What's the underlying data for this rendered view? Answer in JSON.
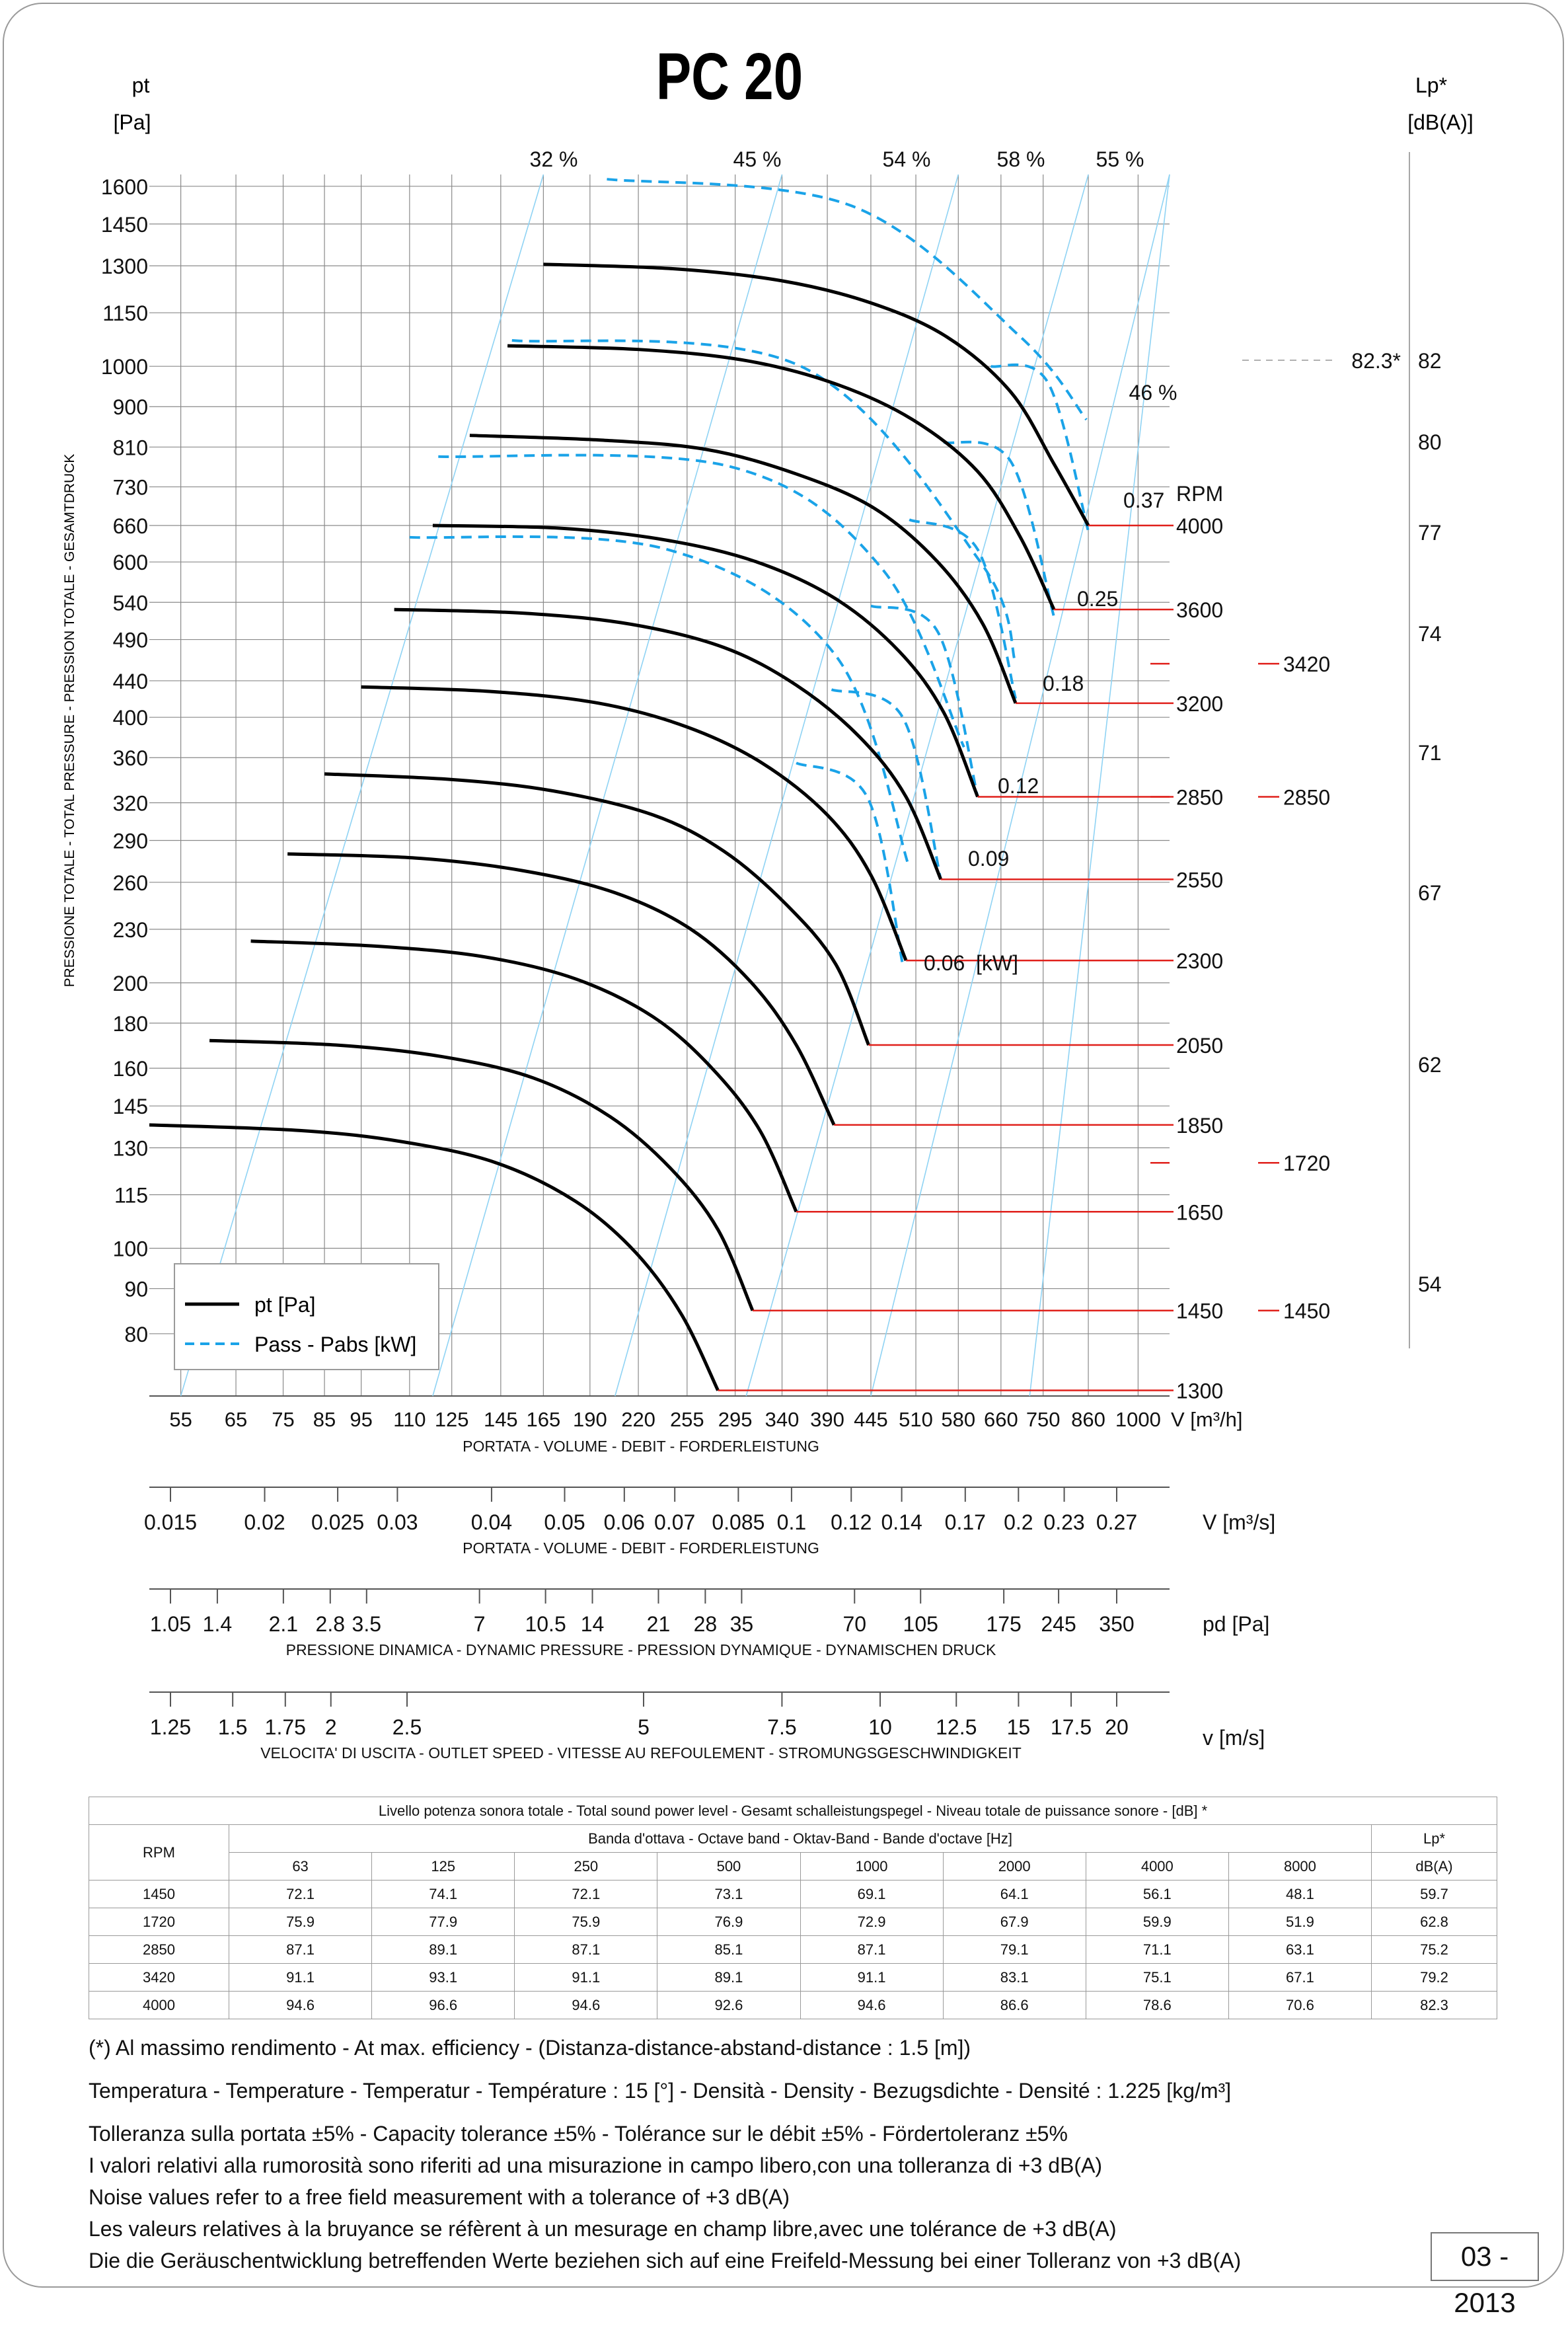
{
  "title": "PC 20",
  "y_axis": {
    "unit_top": "pt",
    "unit_bottom": "[Pa]",
    "label": "PRESSIONE TOTALE - TOTAL PRESSURE - PRESSION TOTALE - GESAMTDRUCK"
  },
  "right_axis": {
    "unit_top": "Lp*",
    "unit_bottom": "[dB(A)]"
  },
  "legend": {
    "pt": "pt [Pa]",
    "pass": "Pass - Pabs [kW]"
  },
  "chart_data": {
    "type": "line",
    "title": "PC 20",
    "x_label": "V [m³/h]",
    "x_scale": "log",
    "xlim": [
      50,
      1100
    ],
    "y_label": "pt [Pa]",
    "y_scale": "log",
    "ylim": [
      68,
      1650
    ],
    "y_ticks": [
      "1600",
      "1450",
      "1300",
      "1150",
      "1000",
      "900",
      "810",
      "730",
      "660",
      "600",
      "540",
      "490",
      "440",
      "400",
      "360",
      "320",
      "290",
      "260",
      "230",
      "200",
      "180",
      "160",
      "145",
      "130",
      "115",
      "100",
      "90",
      "80"
    ],
    "x_ticks": [
      "55",
      "65",
      "75",
      "85",
      "95",
      "110",
      "125",
      "145",
      "165",
      "190",
      "220",
      "255",
      "295",
      "340",
      "390",
      "445",
      "510",
      "580",
      "660",
      "750",
      "860",
      "1000"
    ],
    "x_unit": "V [m³/h]",
    "x_axis_caption": "PORTATA - VOLUME - DEBIT - FORDERLEISTUNG",
    "series": [
      {
        "name": "4000",
        "curve": [
          [
            165,
            1305
          ],
          [
            245,
            1290
          ],
          [
            340,
            1250
          ],
          [
            445,
            1180
          ],
          [
            560,
            1080
          ],
          [
            680,
            935
          ],
          [
            775,
            775
          ],
          [
            860,
            660
          ]
        ]
      },
      {
        "name": "3600",
        "curve": [
          [
            148,
            1055
          ],
          [
            220,
            1045
          ],
          [
            305,
            1015
          ],
          [
            400,
            955
          ],
          [
            505,
            870
          ],
          [
            615,
            760
          ],
          [
            700,
            640
          ],
          [
            775,
            530
          ]
        ]
      },
      {
        "name": "3200",
        "curve": [
          [
            132,
            835
          ],
          [
            195,
            825
          ],
          [
            270,
            805
          ],
          [
            355,
            755
          ],
          [
            450,
            690
          ],
          [
            545,
            600
          ],
          [
            625,
            510
          ],
          [
            690,
            415
          ]
        ]
      },
      {
        "name": "2850",
        "curve": [
          [
            118,
            660
          ],
          [
            175,
            655
          ],
          [
            240,
            635
          ],
          [
            315,
            600
          ],
          [
            400,
            545
          ],
          [
            485,
            475
          ],
          [
            555,
            405
          ],
          [
            615,
            325
          ]
        ]
      },
      {
        "name": "2550",
        "curve": [
          [
            105,
            530
          ],
          [
            155,
            525
          ],
          [
            215,
            510
          ],
          [
            285,
            480
          ],
          [
            355,
            435
          ],
          [
            430,
            380
          ],
          [
            495,
            325
          ],
          [
            550,
            262
          ]
        ]
      },
      {
        "name": "2300",
        "curve": [
          [
            95,
            433
          ],
          [
            140,
            428
          ],
          [
            195,
            415
          ],
          [
            255,
            390
          ],
          [
            320,
            355
          ],
          [
            390,
            310
          ],
          [
            445,
            265
          ],
          [
            495,
            212
          ]
        ]
      },
      {
        "name": "2050",
        "curve": [
          [
            85,
            345
          ],
          [
            125,
            340
          ],
          [
            170,
            330
          ],
          [
            230,
            310
          ],
          [
            285,
            282
          ],
          [
            345,
            245
          ],
          [
            400,
            210
          ],
          [
            442,
            170
          ]
        ]
      },
      {
        "name": "1850",
        "curve": [
          [
            76,
            280
          ],
          [
            112,
            277
          ],
          [
            155,
            268
          ],
          [
            205,
            253
          ],
          [
            258,
            230
          ],
          [
            310,
            200
          ],
          [
            355,
            170
          ],
          [
            398,
            138
          ]
        ]
      },
      {
        "name": "1650",
        "curve": [
          [
            68,
            223
          ],
          [
            100,
            220
          ],
          [
            138,
            214
          ],
          [
            182,
            202
          ],
          [
            230,
            183
          ],
          [
            275,
            160
          ],
          [
            318,
            136
          ],
          [
            355,
            110
          ]
        ]
      },
      {
        "name": "1450",
        "curve": [
          [
            60,
            172
          ],
          [
            88,
            170
          ],
          [
            121,
            165
          ],
          [
            160,
            156
          ],
          [
            202,
            141
          ],
          [
            243,
            123
          ],
          [
            280,
            105
          ],
          [
            311,
            85
          ]
        ]
      },
      {
        "name": "1300",
        "curve": [
          [
            50,
            138
          ],
          [
            79,
            136
          ],
          [
            108,
            132
          ],
          [
            143,
            125
          ],
          [
            182,
            113
          ],
          [
            218,
            99
          ],
          [
            251,
            84
          ],
          [
            280,
            69
          ]
        ]
      }
    ],
    "power": [
      {
        "kw": "0.37",
        "curve": [
          [
            640,
            1000
          ],
          [
            760,
            960
          ],
          [
            860,
            650
          ]
        ]
      },
      {
        "kw": "0.25",
        "curve": [
          [
            555,
            820
          ],
          [
            680,
            780
          ],
          [
            775,
            520
          ]
        ]
      },
      {
        "kw": "0.18",
        "curve": [
          [
            500,
            670
          ],
          [
            615,
            620
          ],
          [
            690,
            420
          ]
        ]
      },
      {
        "kw": "0.12",
        "curve": [
          [
            445,
            535
          ],
          [
            545,
            500
          ],
          [
            615,
            325
          ]
        ]
      },
      {
        "kw": "0.09",
        "curve": [
          [
            395,
            430
          ],
          [
            490,
            400
          ],
          [
            550,
            262
          ]
        ]
      },
      {
        "kw": "0.06",
        "curve": [
          [
            355,
            355
          ],
          [
            440,
            325
          ],
          [
            490,
            210
          ]
        ]
      },
      {
        "kw": "",
        "curve": [
          [
            200,
            1630
          ],
          [
            420,
            1520
          ],
          [
            700,
            1080
          ],
          [
            855,
            870
          ]
        ]
      },
      {
        "kw": "",
        "curve": [
          [
            150,
            1070
          ],
          [
            360,
            1000
          ],
          [
            620,
            600
          ],
          [
            690,
            460
          ]
        ]
      },
      {
        "kw": "",
        "curve": [
          [
            120,
            790
          ],
          [
            290,
            770
          ],
          [
            460,
            590
          ],
          [
            590,
            370
          ]
        ]
      },
      {
        "kw": "",
        "curve": [
          [
            110,
            640
          ],
          [
            240,
            620
          ],
          [
            400,
            470
          ],
          [
            500,
            270
          ]
        ]
      }
    ],
    "efficiency": [
      {
        "label": "32 %",
        "x": [
          "165",
          "55"
        ]
      },
      {
        "label": "45 %",
        "x": [
          "340",
          "118"
        ]
      },
      {
        "label": "54 %",
        "x": [
          "580",
          "205"
        ]
      },
      {
        "label": "58 %",
        "x": [
          "860",
          "305"
        ]
      },
      {
        "label": "55 %",
        "x": [
          "1100",
          "445"
        ]
      },
      {
        "label": "46 %",
        "x": [
          "1100",
          "720"
        ]
      }
    ],
    "rpm_header": "RPM",
    "rpm_labels": [
      "4000",
      "3600",
      "3200",
      "2850",
      "2550",
      "2300",
      "2050",
      "1850",
      "1650",
      "1450",
      "1300"
    ],
    "noise_ticks": [
      "82",
      "80",
      "77",
      "74",
      "71",
      "67",
      "62",
      "54"
    ],
    "noise_marks": [
      {
        "rpm": "3420",
        "pt": 460
      },
      {
        "rpm": "2850",
        "pt": 325
      },
      {
        "rpm": "1720",
        "pt": 125
      },
      {
        "rpm": "1450",
        "pt": 85
      }
    ],
    "max_lp_label": "82.3*",
    "kw_unit": "[kW]"
  },
  "secondary_axes": [
    {
      "unit": "V  [m³/s]",
      "caption": "PORTATA - VOLUME - DEBIT - FORDERLEISTUNG",
      "labels": [
        "0.015",
        "0.02",
        "0.025",
        "0.03",
        "0.04",
        "0.05",
        "0.06",
        "0.07",
        "0.085",
        "0.1",
        "0.12",
        "0.14",
        "0.17",
        "0.2",
        "0.23",
        "0.27"
      ],
      "values": [
        0.015,
        0.02,
        0.025,
        0.03,
        0.04,
        0.05,
        0.06,
        0.07,
        0.085,
        0.1,
        0.12,
        0.14,
        0.17,
        0.2,
        0.23,
        0.27
      ]
    },
    {
      "unit": "pd  [Pa]",
      "caption": "PRESSIONE DINAMICA - DYNAMIC PRESSURE - PRESSION DYNAMIQUE - DYNAMISCHEN DRUCK",
      "labels": [
        "1.05",
        "1.4",
        "2.1",
        "2.8",
        "3.5",
        "7",
        "10.5",
        "14",
        "21",
        "28",
        "35",
        "70",
        "105",
        "175",
        "245",
        "350"
      ],
      "values": [
        1.05,
        1.4,
        2.1,
        2.8,
        3.5,
        7,
        10.5,
        14,
        21,
        28,
        35,
        70,
        105,
        175,
        245,
        350
      ]
    },
    {
      "unit": "v  [m/s]",
      "caption": "VELOCITA' DI USCITA - OUTLET SPEED - VITESSE AU REFOULEMENT - STROMUNGSGESCHWINDIGKEIT",
      "labels": [
        "1.25",
        "1.5",
        "1.75",
        "2",
        "2.5",
        "5",
        "7.5",
        "10",
        "12.5",
        "15",
        "17.5",
        "20"
      ],
      "values": [
        1.25,
        1.5,
        1.75,
        2,
        2.5,
        5,
        7.5,
        10,
        12.5,
        15,
        17.5,
        20
      ]
    }
  ],
  "sound_table": {
    "title": "Livello potenza sonora totale - Total sound power level - Gesamt schalleistungspegel - Niveau totale de puissance sonore - [dB]   *",
    "band_header": "Banda d'ottava - Octave band - Oktav-Band - Bande d'octave [Hz]",
    "rpm_header": "RPM",
    "lp_header": "Lp*",
    "lp_unit": "dB(A)",
    "bands": [
      "63",
      "125",
      "250",
      "500",
      "1000",
      "2000",
      "4000",
      "8000"
    ],
    "rows": [
      {
        "rpm": "1450",
        "v": [
          "72.1",
          "74.1",
          "72.1",
          "73.1",
          "69.1",
          "64.1",
          "56.1",
          "48.1"
        ],
        "lp": "59.7"
      },
      {
        "rpm": "1720",
        "v": [
          "75.9",
          "77.9",
          "75.9",
          "76.9",
          "72.9",
          "67.9",
          "59.9",
          "51.9"
        ],
        "lp": "62.8"
      },
      {
        "rpm": "2850",
        "v": [
          "87.1",
          "89.1",
          "87.1",
          "85.1",
          "87.1",
          "79.1",
          "71.1",
          "63.1"
        ],
        "lp": "75.2"
      },
      {
        "rpm": "3420",
        "v": [
          "91.1",
          "93.1",
          "91.1",
          "89.1",
          "91.1",
          "83.1",
          "75.1",
          "67.1"
        ],
        "lp": "79.2"
      },
      {
        "rpm": "4000",
        "v": [
          "94.6",
          "96.6",
          "94.6",
          "92.6",
          "94.6",
          "86.6",
          "78.6",
          "70.6"
        ],
        "lp": "82.3"
      }
    ]
  },
  "notes": {
    "max_eff": "(*) Al massimo rendimento - At max. efficiency - (Distanza-distance-abstand-distance : 1.5 [m])",
    "temp": "Temperatura - Temperature - Temperatur - Température : 15 [°]  -  Densità - Density - Bezugsdichte - Densité : 1.225 [kg/m³]",
    "tol1": "Tolleranza sulla portata  ±5% - Capacity tolerance ±5% - Tolérance sur le débit ±5% - Fördertoleranz ±5%",
    "tol2": "I valori relativi alla rumorosità sono riferiti ad una misurazione in campo libero,con una tolleranza di +3 dB(A)",
    "tol3": "Noise values refer to a free field measurement with a tolerance of +3 dB(A)",
    "tol4": "Les valeurs relatives à la bruyance se réfèrent à un mesurage en champ libre,avec une tolérance de +3 dB(A)",
    "tol5": "Die die Geräuschentwicklung betreffenden Werte beziehen sich auf eine Freifeld-Messung bei einer Tolleranz von +3 dB(A)"
  },
  "doc_code": "03 - 2013",
  "colors": {
    "pt_line": "#000000",
    "power_line": "#1aa3e8",
    "eff_line": "#8fd3f4",
    "grid": "#8a8a8a",
    "rpm_marker": "#e0201b"
  }
}
